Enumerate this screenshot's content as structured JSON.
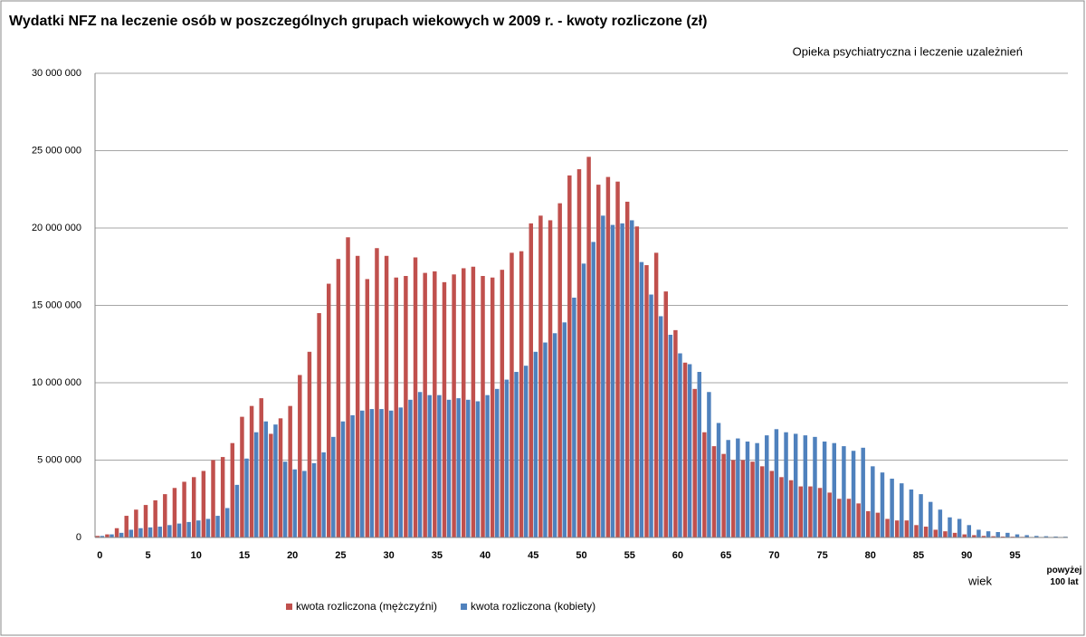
{
  "chart_data": {
    "type": "bar",
    "title": "Wydatki NFZ na leczenie osób w poszczególnych grupach wiekowych w 2009 r. - kwoty rozliczone (zł)",
    "subtitle": "Opieka psychiatryczna i leczenie uzależnień",
    "x_label": "wiek",
    "categories": [
      "0",
      null,
      null,
      null,
      null,
      "5",
      null,
      null,
      null,
      null,
      "10",
      null,
      null,
      null,
      null,
      "15",
      null,
      null,
      null,
      null,
      "20",
      null,
      null,
      null,
      null,
      "25",
      null,
      null,
      null,
      null,
      "30",
      null,
      null,
      null,
      null,
      "35",
      null,
      null,
      null,
      null,
      "40",
      null,
      null,
      null,
      null,
      "45",
      null,
      null,
      null,
      null,
      "50",
      null,
      null,
      null,
      null,
      "55",
      null,
      null,
      null,
      null,
      "60",
      null,
      null,
      null,
      null,
      "65",
      null,
      null,
      null,
      null,
      "70",
      null,
      null,
      null,
      null,
      "75",
      null,
      null,
      null,
      null,
      "80",
      null,
      null,
      null,
      null,
      "85",
      null,
      null,
      null,
      null,
      "90",
      null,
      null,
      null,
      null,
      "95",
      null,
      null,
      null,
      null,
      "powyżej 100 lat"
    ],
    "series": [
      {
        "name": "kwota rozliczona (mężczyźni)",
        "color": "#c0504d",
        "values": [
          100000,
          200000,
          600000,
          1400000,
          1800000,
          2100000,
          2400000,
          2800000,
          3200000,
          3600000,
          3900000,
          4300000,
          5000000,
          5200000,
          6100000,
          7800000,
          8500000,
          9000000,
          6700000,
          7700000,
          8500000,
          10500000,
          12000000,
          14500000,
          16400000,
          18000000,
          19400000,
          18200000,
          16700000,
          18700000,
          18200000,
          16800000,
          16900000,
          18100000,
          17100000,
          17200000,
          16500000,
          17000000,
          17400000,
          17500000,
          16900000,
          16800000,
          17300000,
          18400000,
          18500000,
          20300000,
          20800000,
          20500000,
          21600000,
          23400000,
          23800000,
          24600000,
          22800000,
          23300000,
          23000000,
          21700000,
          20100000,
          17600000,
          18400000,
          15900000,
          13400000,
          11300000,
          9600000,
          6800000,
          5900000,
          5400000,
          5000000,
          5000000,
          4900000,
          4600000,
          4300000,
          3900000,
          3700000,
          3300000,
          3300000,
          3200000,
          2900000,
          2500000,
          2500000,
          2200000,
          1700000,
          1600000,
          1200000,
          1100000,
          1100000,
          800000,
          700000,
          500000,
          400000,
          300000,
          200000,
          150000,
          100000,
          80000,
          60000,
          50000,
          40000,
          30000,
          20000,
          10000,
          10000
        ]
      },
      {
        "name": "kwota rozliczona (kobiety)",
        "color": "#4f81bd",
        "values": [
          100000,
          200000,
          300000,
          500000,
          600000,
          650000,
          700000,
          800000,
          900000,
          1000000,
          1100000,
          1200000,
          1400000,
          1900000,
          3400000,
          5100000,
          6800000,
          7500000,
          7300000,
          4900000,
          4400000,
          4300000,
          4800000,
          5500000,
          6500000,
          7500000,
          7900000,
          8200000,
          8300000,
          8300000,
          8200000,
          8400000,
          8900000,
          9400000,
          9200000,
          9200000,
          8900000,
          9000000,
          8900000,
          8800000,
          9200000,
          9600000,
          10200000,
          10700000,
          11100000,
          12000000,
          12600000,
          13200000,
          13900000,
          15500000,
          17700000,
          19100000,
          20800000,
          20200000,
          20300000,
          20500000,
          17800000,
          15700000,
          14300000,
          13100000,
          11900000,
          11200000,
          10700000,
          9400000,
          7400000,
          6300000,
          6400000,
          6200000,
          6100000,
          6600000,
          7000000,
          6800000,
          6700000,
          6600000,
          6500000,
          6200000,
          6100000,
          5900000,
          5600000,
          5800000,
          4600000,
          4200000,
          3800000,
          3500000,
          3100000,
          2800000,
          2300000,
          1800000,
          1300000,
          1200000,
          800000,
          500000,
          400000,
          350000,
          300000,
          200000,
          150000,
          100000,
          80000,
          60000,
          50000
        ]
      }
    ],
    "ylim": [
      0,
      30000000
    ],
    "yticks": [
      0,
      {
        "value": 5000000,
        "label": "5 000 000"
      },
      {
        "value": 10000000,
        "label": "10 000 000"
      },
      {
        "value": 15000000,
        "label": "15 000 000"
      },
      {
        "value": 20000000,
        "label": "20 000 000"
      },
      {
        "value": 25000000,
        "label": "25 000 000"
      },
      {
        "value": 30000000,
        "label": "30 000 000"
      }
    ],
    "grid": true
  }
}
